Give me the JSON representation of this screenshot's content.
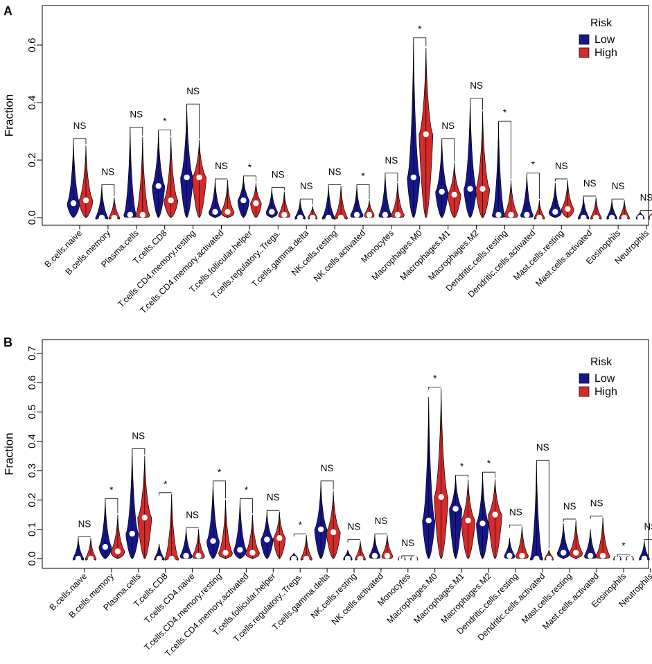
{
  "colors": {
    "low": "#16168c",
    "high": "#d42b2b",
    "median": "#ffffff",
    "axis": "#000000"
  },
  "chart_data": [
    {
      "type": "violin",
      "panel_label": "A",
      "ylabel": "Fraction",
      "ylim": [
        0,
        0.66
      ],
      "yticks": [
        0.0,
        0.2,
        0.4,
        0.6
      ],
      "ytick_labels": [
        "0.0",
        "0.2",
        "0.4",
        "0.6"
      ],
      "legend": {
        "title": "Risk",
        "entries": [
          "Low",
          "High"
        ]
      },
      "categories": [
        "B.cells.naive",
        "B.cells.memory",
        "Plasma.cells",
        "T.cells.CD8",
        "T.cells.CD4.memory.resting",
        "T.cells.CD4.memory.activated",
        "T.cells.follicular.helper",
        "T.cells.regulatory..Tregs.",
        "T.cells.gamma.delta",
        "NK.cells.resting",
        "NK.cells.activated",
        "Monocytes",
        "Macrophages.M0",
        "Macrophages.M1",
        "Macrophages.M2",
        "Dendritic.cells.resting",
        "Dendritic.cells.activated",
        "Mast.cells.resting",
        "Mast.cells.activated",
        "Eosinophils",
        "Neutrophils"
      ],
      "significance": [
        "NS",
        "NS",
        "NS",
        "*",
        "NS",
        "NS",
        "*",
        "NS",
        "NS",
        "NS",
        "*",
        "NS",
        "*",
        "NS",
        "NS",
        "*",
        "*",
        "NS",
        "NS",
        "NS",
        "NS"
      ],
      "series": [
        {
          "name": "Low",
          "medians": [
            0.05,
            0.0,
            0.01,
            0.11,
            0.14,
            0.02,
            0.06,
            0.02,
            0.0,
            0.0,
            0.01,
            0.01,
            0.14,
            0.09,
            0.1,
            0.01,
            0.01,
            0.02,
            0.0,
            0.0,
            0.0
          ],
          "max": [
            0.27,
            0.11,
            0.31,
            0.3,
            0.39,
            0.13,
            0.14,
            0.1,
            0.06,
            0.11,
            0.11,
            0.15,
            0.62,
            0.27,
            0.41,
            0.33,
            0.15,
            0.12,
            0.07,
            0.06,
            0.02
          ]
        },
        {
          "name": "High",
          "medians": [
            0.06,
            0.0,
            0.01,
            0.06,
            0.14,
            0.02,
            0.05,
            0.01,
            0.0,
            0.0,
            0.01,
            0.01,
            0.29,
            0.08,
            0.1,
            0.01,
            0.0,
            0.03,
            0.0,
            0.0,
            0.0
          ],
          "max": [
            0.25,
            0.07,
            0.28,
            0.28,
            0.27,
            0.13,
            0.12,
            0.09,
            0.04,
            0.11,
            0.06,
            0.12,
            0.59,
            0.19,
            0.37,
            0.13,
            0.06,
            0.13,
            0.07,
            0.06,
            0.02
          ]
        }
      ]
    },
    {
      "type": "violin",
      "panel_label": "B",
      "ylabel": "Fraction",
      "ylim": [
        0,
        0.72
      ],
      "yticks": [
        0.0,
        0.1,
        0.2,
        0.3,
        0.4,
        0.5,
        0.6,
        0.7
      ],
      "ytick_labels": [
        "0.0",
        "0.1",
        "0.2",
        "0.3",
        "0.4",
        "0.5",
        "0.6",
        "0.7"
      ],
      "legend": {
        "title": "Risk",
        "entries": [
          "Low",
          "High"
        ]
      },
      "categories": [
        "B.cells.naive",
        "B.cells.memory",
        "Plasma.cells",
        "T.cells.CD8",
        "T.cells.CD4.naive",
        "T.cells.CD4.memory.resting",
        "T.cells.CD4.memory.activated",
        "T.cells.follicular.helper",
        "T.cells.regulatory..Tregs.",
        "T.cells.gamma.delta",
        "NK.cells.resting",
        "NK.cells.activated",
        "Monocytes",
        "Macrophages.M0",
        "Macrophages.M1",
        "Macrophages.M2",
        "Dendritic.cells.resting",
        "Dendritic.cells.activated",
        "Mast.cells.resting",
        "Mast.cells.activated",
        "Eosinophils",
        "Neutrophils"
      ],
      "significance": [
        "NS",
        "*",
        "NS",
        "*",
        "NS",
        "*",
        "*",
        "NS",
        "*",
        "NS",
        "NS",
        "NS",
        "NS",
        "*",
        "*",
        "*",
        "NS",
        "NS",
        "NS",
        "NS",
        "*",
        "NS"
      ],
      "series": [
        {
          "name": "Low",
          "medians": [
            0.0,
            0.04,
            0.085,
            0.0,
            0.01,
            0.06,
            0.03,
            0.065,
            0.0,
            0.1,
            0.0,
            0.01,
            0.0,
            0.13,
            0.17,
            0.12,
            0.01,
            0.0,
            0.02,
            0.01,
            0.0,
            0.0
          ],
          "max": [
            0.07,
            0.2,
            0.37,
            0.05,
            0.1,
            0.26,
            0.2,
            0.16,
            0.02,
            0.26,
            0.03,
            0.08,
            0.005,
            0.55,
            0.28,
            0.29,
            0.07,
            0.33,
            0.12,
            0.1,
            0.01,
            0.06
          ]
        },
        {
          "name": "High",
          "medians": [
            0.0,
            0.025,
            0.14,
            0.0,
            0.01,
            0.02,
            0.02,
            0.07,
            0.0,
            0.09,
            0.0,
            0.01,
            0.0,
            0.21,
            0.13,
            0.15,
            0.01,
            0.0,
            0.02,
            0.01,
            0.0,
            0.0
          ],
          "max": [
            0.07,
            0.15,
            0.35,
            0.22,
            0.1,
            0.2,
            0.15,
            0.16,
            0.08,
            0.23,
            0.06,
            0.08,
            0.005,
            0.58,
            0.27,
            0.27,
            0.11,
            0.03,
            0.13,
            0.14,
            0.01,
            0.04
          ]
        }
      ]
    }
  ]
}
